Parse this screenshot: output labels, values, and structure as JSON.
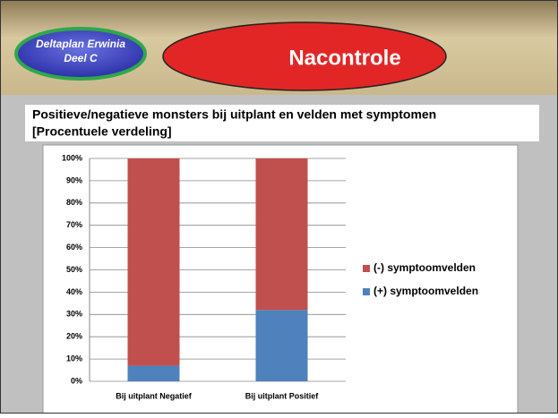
{
  "header": {
    "badge_line1": "Deltaplan Erwinia",
    "badge_line2": "Deel C",
    "banner": "Nacontrole"
  },
  "chart_data": {
    "type": "stacked_bar",
    "title": "Positieve/negatieve monsters bij uitplant en velden met symptomen",
    "subtitle": "[Procentuele verdeling]",
    "categories": [
      "Bij uitplant Negatief",
      "Bij uitplant Positief"
    ],
    "series": [
      {
        "name": "(-) symptoomvelden",
        "color": "#c0504d",
        "values": [
          93,
          68
        ]
      },
      {
        "name": "(+) symptoomvelden",
        "color": "#4f81bd",
        "values": [
          7,
          32
        ]
      }
    ],
    "ylim": [
      0,
      100
    ],
    "yticks": [
      {
        "value": 0,
        "label": "0%"
      },
      {
        "value": 10,
        "label": "10%"
      },
      {
        "value": 20,
        "label": "20%"
      },
      {
        "value": 30,
        "label": "30%"
      },
      {
        "value": 40,
        "label": "40%"
      },
      {
        "value": 50,
        "label": "50%"
      },
      {
        "value": 60,
        "label": "60%"
      },
      {
        "value": 70,
        "label": "70%"
      },
      {
        "value": 80,
        "label": "80%"
      },
      {
        "value": 90,
        "label": "90%"
      },
      {
        "value": 100,
        "label": "100%"
      }
    ],
    "grid": true,
    "legend": "right"
  }
}
